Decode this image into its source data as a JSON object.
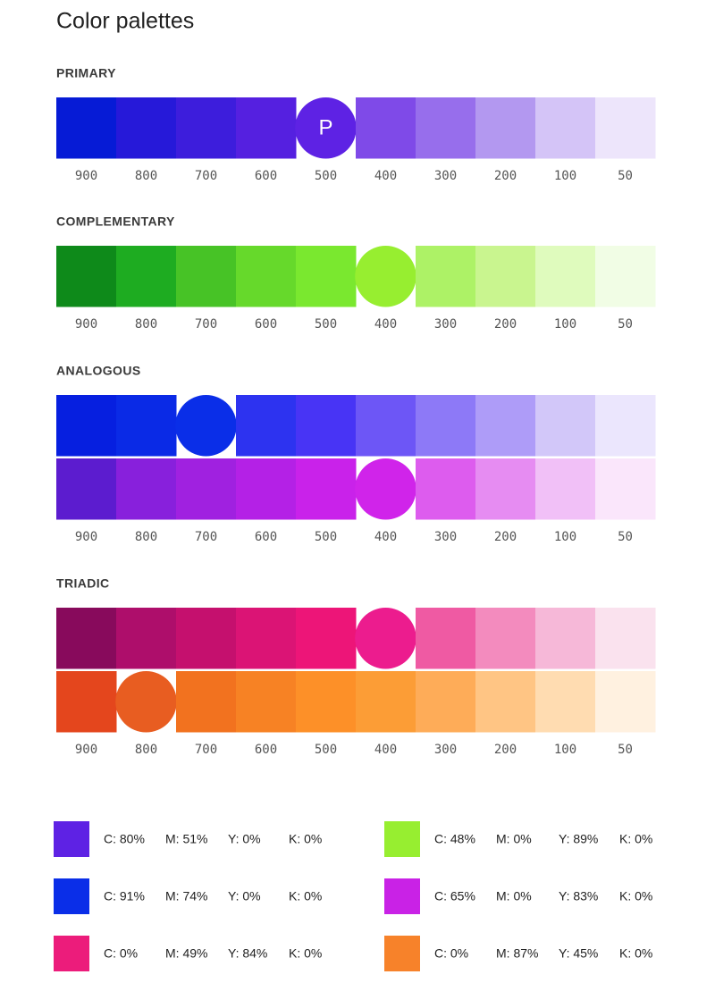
{
  "title": "Color palettes",
  "sections": [
    {
      "label": "PRIMARY",
      "circle_label": "P",
      "rows": [
        {
          "circle": 4,
          "colors": [
            "#061bd6",
            "#2619d9",
            "#3d1ddc",
            "#5520e0",
            "#5e22e4",
            "#7f4ae8",
            "#976eec",
            "#b398f0",
            "#d4c4f7",
            "#ede5fb"
          ]
        }
      ],
      "shades": [
        "900",
        "800",
        "700",
        "600",
        "500",
        "400",
        "300",
        "200",
        "100",
        "50"
      ]
    },
    {
      "label": "COMPLEMENTARY",
      "rows": [
        {
          "circle": 5,
          "colors": [
            "#0e8a1a",
            "#1eac21",
            "#47c326",
            "#66d92b",
            "#7ae82f",
            "#97ee30",
            "#adf266",
            "#c9f58f",
            "#dffbbd",
            "#f1fde5"
          ]
        }
      ],
      "shades": [
        "900",
        "800",
        "700",
        "600",
        "500",
        "400",
        "300",
        "200",
        "100",
        "50"
      ]
    },
    {
      "label": "ANALOGOUS",
      "rows": [
        {
          "circle": 2,
          "colors": [
            "#061fe0",
            "#0a2ae6",
            "#0a2ee8",
            "#2d33f0",
            "#4834f5",
            "#6d56f6",
            "#8d79f7",
            "#ae9cf8",
            "#d2c7f9",
            "#ebe6fd"
          ]
        },
        {
          "circle": 5,
          "colors": [
            "#5c1ccf",
            "#8820dc",
            "#a021e0",
            "#b421e6",
            "#c922ea",
            "#d024ea",
            "#dd5cee",
            "#e68cf2",
            "#f1c0f7",
            "#fae6fb"
          ]
        }
      ],
      "shades": [
        "900",
        "800",
        "700",
        "600",
        "500",
        "400",
        "300",
        "200",
        "100",
        "50"
      ]
    },
    {
      "label": "TRIADIC",
      "rows": [
        {
          "circle": 5,
          "colors": [
            "#880a5c",
            "#ae0e6b",
            "#c5106e",
            "#db1475",
            "#ed1578",
            "#ec1c8e",
            "#ef5aa3",
            "#f38bbe",
            "#f6b8d8",
            "#fae2ee"
          ]
        },
        {
          "circle": 1,
          "colors": [
            "#e4461d",
            "#e85d21",
            "#f2721f",
            "#f78224",
            "#fd9028",
            "#fc9d36",
            "#feac58",
            "#ffc584",
            "#ffdcb1",
            "#fff1e0"
          ]
        }
      ],
      "shades": [
        "900",
        "800",
        "700",
        "600",
        "500",
        "400",
        "300",
        "200",
        "100",
        "50"
      ]
    }
  ],
  "legend": [
    {
      "color": "#5e22e4",
      "values": [
        "C: 80%",
        "M: 51%",
        "Y: 0%",
        "K: 0%"
      ]
    },
    {
      "color": "#0a2ee8",
      "values": [
        "C: 91%",
        "M: 74%",
        "Y: 0%",
        "K: 0%"
      ]
    },
    {
      "color": "#ec1c7b",
      "values": [
        "C: 0%",
        "M: 49%",
        "Y: 84%",
        "K: 0%"
      ]
    },
    {
      "color": "#97ee30",
      "values": [
        "C: 48%",
        "M: 0%",
        "Y: 89%",
        "K: 0%"
      ]
    },
    {
      "color": "#c922e6",
      "values": [
        "C: 65%",
        "M: 0%",
        "Y: 83%",
        "K: 0%"
      ]
    },
    {
      "color": "#f7822a",
      "values": [
        "C: 0%",
        "M: 87%",
        "Y: 45%",
        "K: 0%"
      ]
    }
  ]
}
